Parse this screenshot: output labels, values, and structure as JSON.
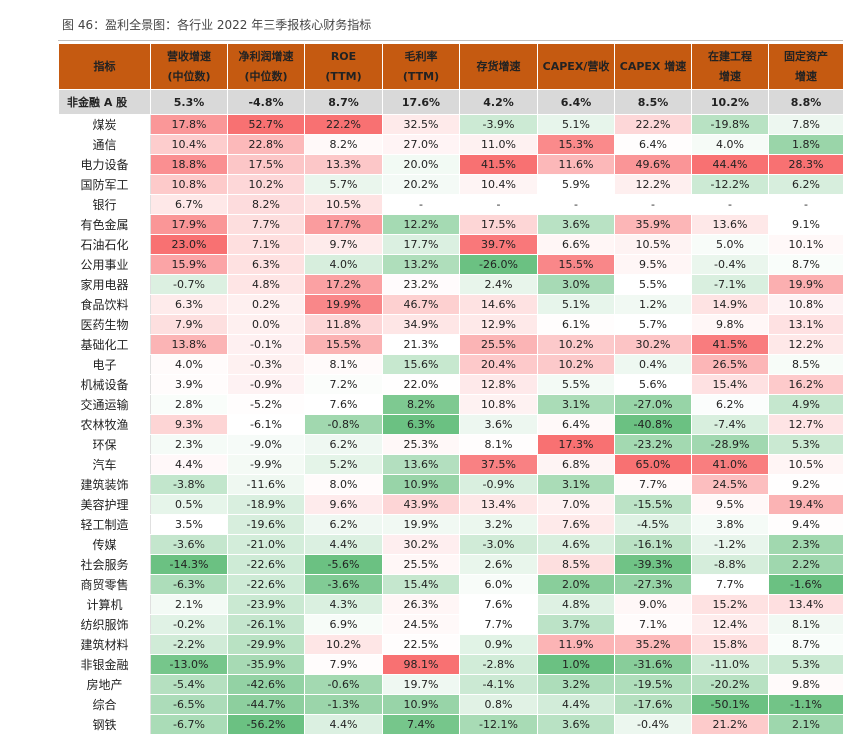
{
  "caption": "图 46：盈利全景图：各行业 2022 年三季报核心财务指标",
  "headers": [
    "指标",
    "营收增速\n(中位数)",
    "净利润增速\n(中位数)",
    "ROE\n(TTM)",
    "毛利率\n(TTM)",
    "存货增速",
    "CAPEX/营收",
    "CAPEX 增速",
    "在建工程\n增速",
    "固定资产\n增速"
  ],
  "summary": [
    "非金融 A 股",
    "5.3%",
    "-4.8%",
    "8.7%",
    "17.6%",
    "4.2%",
    "6.4%",
    "8.5%",
    "10.2%",
    "8.8%"
  ],
  "rows": [
    [
      "煤炭",
      "17.8%",
      "52.7%",
      "22.2%",
      "32.5%",
      "-3.9%",
      "5.1%",
      "22.2%",
      "-19.8%",
      "7.8%"
    ],
    [
      "通信",
      "10.4%",
      "22.8%",
      "8.2%",
      "27.0%",
      "11.0%",
      "15.3%",
      "6.4%",
      "4.0%",
      "1.8%"
    ],
    [
      "电力设备",
      "18.8%",
      "17.5%",
      "13.3%",
      "20.0%",
      "41.5%",
      "11.6%",
      "49.6%",
      "44.4%",
      "28.3%"
    ],
    [
      "国防军工",
      "10.8%",
      "10.2%",
      "5.7%",
      "20.2%",
      "10.4%",
      "5.9%",
      "12.2%",
      "-12.2%",
      "6.2%"
    ],
    [
      "银行",
      "6.7%",
      "8.2%",
      "10.5%",
      "-",
      "-",
      "-",
      "-",
      "-",
      "-"
    ],
    [
      "有色金属",
      "17.9%",
      "7.7%",
      "17.7%",
      "12.2%",
      "17.5%",
      "3.6%",
      "35.9%",
      "13.6%",
      "9.1%"
    ],
    [
      "石油石化",
      "23.0%",
      "7.1%",
      "9.7%",
      "17.7%",
      "39.7%",
      "6.6%",
      "10.5%",
      "5.0%",
      "10.1%"
    ],
    [
      "公用事业",
      "15.9%",
      "6.3%",
      "4.0%",
      "13.2%",
      "-26.0%",
      "15.5%",
      "9.5%",
      "-0.4%",
      "8.7%"
    ],
    [
      "家用电器",
      "-0.7%",
      "4.8%",
      "17.2%",
      "23.2%",
      "2.4%",
      "3.0%",
      "5.5%",
      "-7.1%",
      "19.9%"
    ],
    [
      "食品饮料",
      "6.3%",
      "0.2%",
      "19.9%",
      "46.7%",
      "14.6%",
      "5.1%",
      "1.2%",
      "14.9%",
      "10.8%"
    ],
    [
      "医药生物",
      "7.9%",
      "0.0%",
      "11.8%",
      "34.9%",
      "12.9%",
      "6.1%",
      "5.7%",
      "9.8%",
      "13.1%"
    ],
    [
      "基础化工",
      "13.8%",
      "-0.1%",
      "15.5%",
      "21.3%",
      "25.5%",
      "10.2%",
      "30.2%",
      "41.5%",
      "12.2%"
    ],
    [
      "电子",
      "4.0%",
      "-0.3%",
      "8.1%",
      "15.6%",
      "20.4%",
      "10.2%",
      "0.4%",
      "26.5%",
      "8.5%"
    ],
    [
      "机械设备",
      "3.9%",
      "-0.9%",
      "7.2%",
      "22.0%",
      "12.8%",
      "5.5%",
      "5.6%",
      "15.4%",
      "16.2%"
    ],
    [
      "交通运输",
      "2.8%",
      "-5.2%",
      "7.6%",
      "8.2%",
      "10.8%",
      "3.1%",
      "-27.0%",
      "6.2%",
      "4.9%"
    ],
    [
      "农林牧渔",
      "9.3%",
      "-6.1%",
      "-0.8%",
      "6.3%",
      "3.6%",
      "6.4%",
      "-40.8%",
      "-7.4%",
      "12.7%"
    ],
    [
      "环保",
      "2.3%",
      "-9.0%",
      "6.2%",
      "25.3%",
      "8.1%",
      "17.3%",
      "-23.2%",
      "-28.9%",
      "5.3%"
    ],
    [
      "汽车",
      "4.4%",
      "-9.9%",
      "5.2%",
      "13.6%",
      "37.5%",
      "6.8%",
      "65.0%",
      "41.0%",
      "10.5%"
    ],
    [
      "建筑装饰",
      "-3.8%",
      "-11.6%",
      "8.0%",
      "10.9%",
      "-0.9%",
      "3.1%",
      "7.7%",
      "24.5%",
      "9.2%"
    ],
    [
      "美容护理",
      "0.5%",
      "-18.9%",
      "9.6%",
      "43.9%",
      "13.4%",
      "7.0%",
      "-15.5%",
      "9.5%",
      "19.4%"
    ],
    [
      "轻工制造",
      "3.5%",
      "-19.6%",
      "6.2%",
      "19.9%",
      "3.2%",
      "7.6%",
      "-4.5%",
      "3.8%",
      "9.4%"
    ],
    [
      "传媒",
      "-3.6%",
      "-21.0%",
      "4.4%",
      "30.2%",
      "-3.0%",
      "4.6%",
      "-16.1%",
      "-1.2%",
      "2.3%"
    ],
    [
      "社会服务",
      "-14.3%",
      "-22.6%",
      "-5.6%",
      "25.5%",
      "2.6%",
      "8.5%",
      "-39.3%",
      "-8.8%",
      "2.2%"
    ],
    [
      "商贸零售",
      "-6.3%",
      "-22.6%",
      "-3.6%",
      "15.4%",
      "6.0%",
      "2.0%",
      "-27.3%",
      "7.7%",
      "-1.6%"
    ],
    [
      "计算机",
      "2.1%",
      "-23.9%",
      "4.3%",
      "26.3%",
      "7.6%",
      "4.8%",
      "9.0%",
      "15.2%",
      "13.4%"
    ],
    [
      "纺织服饰",
      "-0.2%",
      "-26.1%",
      "6.9%",
      "24.5%",
      "7.7%",
      "3.7%",
      "7.1%",
      "12.4%",
      "8.1%"
    ],
    [
      "建筑材料",
      "-2.2%",
      "-29.9%",
      "10.2%",
      "22.5%",
      "0.9%",
      "11.9%",
      "35.2%",
      "15.8%",
      "8.7%"
    ],
    [
      "非银金融",
      "-13.0%",
      "-35.9%",
      "7.9%",
      "98.1%",
      "-2.8%",
      "1.0%",
      "-31.6%",
      "-11.0%",
      "5.3%"
    ],
    [
      "房地产",
      "-5.4%",
      "-42.6%",
      "-0.6%",
      "19.7%",
      "-4.1%",
      "3.2%",
      "-19.5%",
      "-20.2%",
      "9.8%"
    ],
    [
      "综合",
      "-6.5%",
      "-44.7%",
      "-1.3%",
      "10.9%",
      "0.8%",
      "4.4%",
      "-17.6%",
      "-50.1%",
      "-1.1%"
    ],
    [
      "钢铁",
      "-6.7%",
      "-56.2%",
      "4.4%",
      "7.4%",
      "-12.1%",
      "3.6%",
      "-0.4%",
      "21.2%",
      "2.1%"
    ]
  ],
  "colors": {
    "header_bg": "#c55a11",
    "header_text": "#ffffff",
    "summary_bg": "#d9d9d9",
    "high_color": "#f8696b",
    "mid_color": "#ffffff",
    "low_color": "#63be7b"
  }
}
